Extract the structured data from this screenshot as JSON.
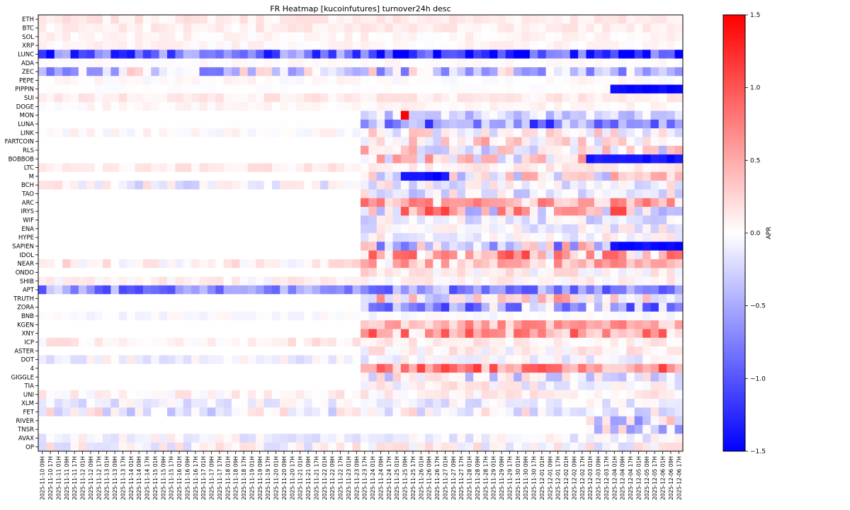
{
  "chart_data": {
    "type": "heatmap",
    "title": "FR Heatmap [kucoinfutures] turnover24h desc",
    "colorbar": {
      "label": "APR",
      "vmin": -1.5,
      "vmax": 1.5,
      "ticks": [
        1.5,
        1.0,
        0.5,
        0.0,
        -0.5,
        -1.0,
        -1.5
      ],
      "tick_labels": [
        "1.5",
        "1.0",
        "0.5",
        "0.0",
        "−0.5",
        "−1.0",
        "−1.5"
      ],
      "colormap": "bwr"
    },
    "rows": [
      "ETH",
      "BTC",
      "SOL",
      "XRP",
      "LUNC",
      "ADA",
      "ZEC",
      "PEPE",
      "PIPPIN",
      "SUI",
      "DOGE",
      "MON",
      "LUNA",
      "LINK",
      "FARTCOIN",
      "RLS",
      "BOBBOB",
      "LTC",
      "M",
      "BCH",
      "TAO",
      "ARC",
      "IRYS",
      "WIF",
      "ENA",
      "HYPE",
      "SAPIEN",
      "IDOL",
      "NEAR",
      "ONDO",
      "SHIB",
      "APT",
      "TRUTH",
      "ZORA",
      "BNB",
      "KGEN",
      "XNY",
      "ICP",
      "ASTER",
      "DOT",
      "4",
      "GIGGLE",
      "TIA",
      "UNI",
      "XLM",
      "FET",
      "RIVER",
      "TNSR",
      "AVAX",
      "OP"
    ],
    "x_tick_labels": [
      "2025-11-10 09H",
      "2025-11-10 17H",
      "2025-11-11 01H",
      "2025-11-11 09H",
      "2025-11-11 17H",
      "2025-11-12 01H",
      "2025-11-12 09H",
      "2025-11-12 17H",
      "2025-11-13 01H",
      "2025-11-13 09H",
      "2025-11-13 17H",
      "2025-11-14 01H",
      "2025-11-14 09H",
      "2025-11-14 17H",
      "2025-11-15 01H",
      "2025-11-15 09H",
      "2025-11-15 17H",
      "2025-11-16 01H",
      "2025-11-16 09H",
      "2025-11-16 17H",
      "2025-11-17 01H",
      "2025-11-17 09H",
      "2025-11-17 17H",
      "2025-11-18 01H",
      "2025-11-18 09H",
      "2025-11-18 17H",
      "2025-11-19 01H",
      "2025-11-19 09H",
      "2025-11-19 17H",
      "2025-11-20 01H",
      "2025-11-20 09H",
      "2025-11-20 17H",
      "2025-11-21 01H",
      "2025-11-21 09H",
      "2025-11-21 17H",
      "2025-11-22 01H",
      "2025-11-22 09H",
      "2025-11-22 17H",
      "2025-11-23 01H",
      "2025-11-23 09H",
      "2025-11-23 17H",
      "2025-11-24 01H",
      "2025-11-24 09H",
      "2025-11-24 17H",
      "2025-11-25 01H",
      "2025-11-25 09H",
      "2025-11-25 17H",
      "2025-11-26 01H",
      "2025-11-26 09H",
      "2025-11-26 17H",
      "2025-11-27 01H",
      "2025-11-27 09H",
      "2025-11-27 17H",
      "2025-11-28 01H",
      "2025-11-28 09H",
      "2025-11-28 17H",
      "2025-11-29 01H",
      "2025-11-29 09H",
      "2025-11-29 17H",
      "2025-11-30 01H",
      "2025-11-30 09H",
      "2025-11-30 17H",
      "2025-12-01 01H",
      "2025-12-01 09H",
      "2025-12-01 17H",
      "2025-12-02 01H",
      "2025-12-02 09H",
      "2025-12-02 17H",
      "2025-12-03 01H",
      "2025-12-03 09H",
      "2025-12-03 17H",
      "2025-12-04 01H",
      "2025-12-04 09H",
      "2025-12-04 17H",
      "2025-12-05 01H",
      "2025-12-05 09H",
      "2025-12-05 17H",
      "2025-12-06 01H",
      "2025-12-06 09H",
      "2025-12-06 17H"
    ],
    "columns_per_tick": 1,
    "n_columns": 80,
    "profiles": {
      "ETH": {
        "base": 0.12,
        "spread": 0.1
      },
      "BTC": {
        "base": 0.1,
        "spread": 0.1
      },
      "SOL": {
        "base": 0.06,
        "spread": 0.08
      },
      "XRP": {
        "base": 0.05,
        "spread": 0.08
      },
      "LUNC": {
        "base": -0.95,
        "spread": 0.55,
        "late_base": -1.1
      },
      "ADA": {
        "base": 0.02,
        "spread": 0.05
      },
      "ZEC": {
        "base": -0.25,
        "spread": 0.6
      },
      "PEPE": {
        "base": 0.02,
        "spread": 0.08
      },
      "PIPPIN": {
        "base": 0.0,
        "spread": 0.03,
        "block": {
          "from": 71,
          "to": 79,
          "value": -1.5
        }
      },
      "SUI": {
        "base": 0.12,
        "spread": 0.1
      },
      "DOGE": {
        "base": 0.04,
        "spread": 0.08
      },
      "MON": {
        "base": 0.0,
        "spread": 0.01,
        "start": 40,
        "late_base": -0.25,
        "late_spread": 0.3,
        "spike": {
          "col": 45,
          "value": 1.5
        }
      },
      "LUNA": {
        "base": 0.0,
        "spread": 0.01,
        "start": 14,
        "late_base": -0.75,
        "late_spread": 0.65
      },
      "LINK": {
        "base": 0.02,
        "spread": 0.1,
        "late_base": 0.05,
        "late_spread": 0.35
      },
      "FARTCOIN": {
        "base": 0.0,
        "spread": 0.01,
        "start": 40,
        "late_base": 0.15,
        "late_spread": 0.45
      },
      "RLS": {
        "base": 0.0,
        "spread": 0.01,
        "start": 40,
        "late_base": 0.1,
        "late_spread": 0.55
      },
      "BOBBOB": {
        "base": 0.0,
        "spread": 0.01,
        "start": 40,
        "late_base": 0.15,
        "late_spread": 0.55,
        "block": {
          "from": 68,
          "to": 79,
          "value": -1.4
        }
      },
      "LTC": {
        "base": 0.1,
        "spread": 0.12
      },
      "M": {
        "base": 0.0,
        "spread": 0.01,
        "start": 40,
        "late_base": 0.05,
        "late_spread": 0.55,
        "block": {
          "from": 45,
          "to": 50,
          "value": -1.4
        }
      },
      "BCH": {
        "base": -0.05,
        "spread": 0.3
      },
      "TAO": {
        "base": 0.0,
        "spread": 0.01,
        "start": 40,
        "late_base": -0.1,
        "late_spread": 0.35
      },
      "ARC": {
        "base": 0.0,
        "spread": 0.01,
        "start": 40,
        "late_base": 0.45,
        "late_spread": 0.45
      },
      "IRYS": {
        "base": 0.0,
        "spread": 0.01,
        "start": 40,
        "late_base": 0.3,
        "late_spread": 0.85
      },
      "WIF": {
        "base": 0.0,
        "spread": 0.01,
        "start": 40,
        "late_base": -0.15,
        "late_spread": 0.3
      },
      "ENA": {
        "base": 0.0,
        "spread": 0.01,
        "start": 40,
        "late_base": -0.05,
        "late_spread": 0.25
      },
      "HYPE": {
        "base": 0.0,
        "spread": 0.01,
        "start": 40,
        "late_base": 0.0,
        "late_spread": 0.25
      },
      "SAPIEN": {
        "base": 0.0,
        "spread": 0.01,
        "start": 40,
        "late_base": -0.2,
        "late_spread": 0.8,
        "block": {
          "from": 71,
          "to": 79,
          "value": -1.45
        }
      },
      "IDOL": {
        "base": 0.0,
        "spread": 0.01,
        "start": 40,
        "late_base": 0.45,
        "late_spread": 0.65
      },
      "NEAR": {
        "base": 0.1,
        "spread": 0.2,
        "late_base": 0.35,
        "late_spread": 0.45
      },
      "ONDO": {
        "base": 0.0,
        "spread": 0.01,
        "start": 40,
        "late_base": 0.1,
        "late_spread": 0.25
      },
      "SHIB": {
        "base": 0.06,
        "spread": 0.15
      },
      "APT": {
        "base": -0.65,
        "spread": 0.45
      },
      "TRUTH": {
        "base": 0.0,
        "spread": 0.01,
        "start": 40,
        "late_base": 0.1,
        "late_spread": 0.6
      },
      "ZORA": {
        "base": 0.0,
        "spread": 0.01,
        "start": 40,
        "late_base": -0.55,
        "late_spread": 0.65
      },
      "BNB": {
        "base": -0.02,
        "spread": 0.08
      },
      "KGEN": {
        "base": 0.0,
        "spread": 0.01,
        "start": 40,
        "late_base": 0.45,
        "late_spread": 0.35
      },
      "XNY": {
        "base": 0.0,
        "spread": 0.01,
        "start": 40,
        "late_base": 0.55,
        "late_spread": 0.55
      },
      "ICP": {
        "base": 0.1,
        "spread": 0.15
      },
      "ASTER": {
        "base": 0.0,
        "spread": 0.01,
        "start": 40,
        "late_base": 0.05,
        "late_spread": 0.2
      },
      "DOT": {
        "base": -0.05,
        "spread": 0.2
      },
      "4": {
        "base": 0.0,
        "spread": 0.01,
        "start": 40,
        "late_base": 0.7,
        "late_spread": 0.5
      },
      "GIGGLE": {
        "base": 0.0,
        "spread": 0.01,
        "start": 40,
        "late_base": -0.1,
        "late_spread": 0.4
      },
      "TIA": {
        "base": 0.0,
        "spread": 0.01,
        "start": 40,
        "late_base": 0.0,
        "late_spread": 0.25
      },
      "UNI": {
        "base": 0.08,
        "spread": 0.15
      },
      "XLM": {
        "base": -0.1,
        "spread": 0.2
      },
      "FET": {
        "base": -0.05,
        "spread": 0.35
      },
      "RIVER": {
        "base": 0.0,
        "spread": 0.01,
        "start": 68,
        "late_base": -0.2,
        "late_spread": 0.6
      },
      "TNSR": {
        "base": 0.0,
        "spread": 0.01,
        "start": 68,
        "late_base": -0.2,
        "late_spread": 0.5
      },
      "AVAX": {
        "base": -0.05,
        "spread": 0.2
      },
      "OP": {
        "base": 0.0,
        "spread": 0.25
      }
    }
  }
}
